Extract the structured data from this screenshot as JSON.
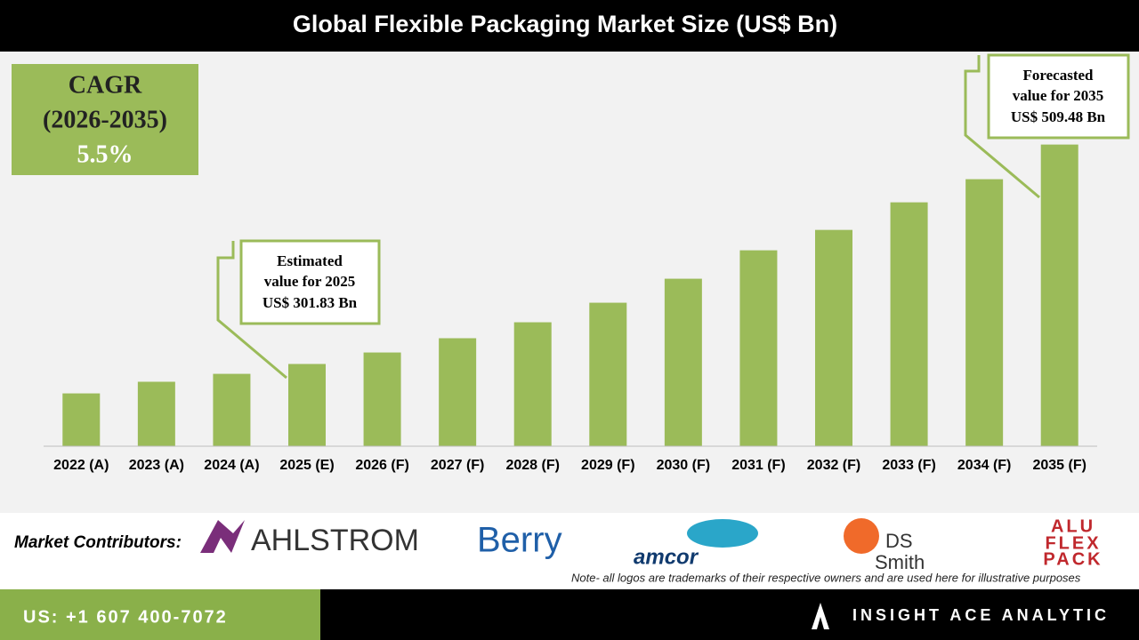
{
  "chart_data": {
    "type": "bar",
    "title": "Global Flexible Packaging Market Size (US$ Bn)",
    "categories": [
      "2022 (A)",
      "2023 (A)",
      "2024 (A)",
      "2025 (E)",
      "2026 (F)",
      "2027 (F)",
      "2028 (F)",
      "2029 (F)",
      "2030 (F)",
      "2031 (F)",
      "2032 (F)",
      "2033 (F)",
      "2034 (F)",
      "2035 (F)"
    ],
    "values": [
      274.0,
      285.0,
      292.5,
      301.83,
      312.7,
      326.2,
      341.3,
      359.8,
      382.5,
      409.4,
      428.7,
      454.8,
      476.7,
      509.48
    ],
    "color": "#9bbb59",
    "ylim": [
      224,
      510
    ],
    "cagr": {
      "lines": [
        "CAGR",
        "(2026-2035)",
        "5.5%"
      ]
    },
    "annotations": [
      {
        "lines": [
          "Estimated",
          "value for 2025",
          "US$ 301.83 Bn"
        ]
      },
      {
        "lines": [
          "Forecasted",
          "value for 2035",
          "US$ 509.48 Bn"
        ]
      }
    ]
  },
  "contributors": {
    "label": "Market Contributors:",
    "logos": [
      "AHLSTROM",
      "Berry",
      "amcor",
      "DS",
      "Smith",
      "ALU",
      "FLEX",
      "PACK"
    ],
    "note": "Note- all logos are trademarks of their respective owners and are used here for illustrative purposes"
  },
  "footer": {
    "phone": "US: +1 607 400-7072",
    "brand": "INSIGHT ACE ANALYTIC"
  }
}
